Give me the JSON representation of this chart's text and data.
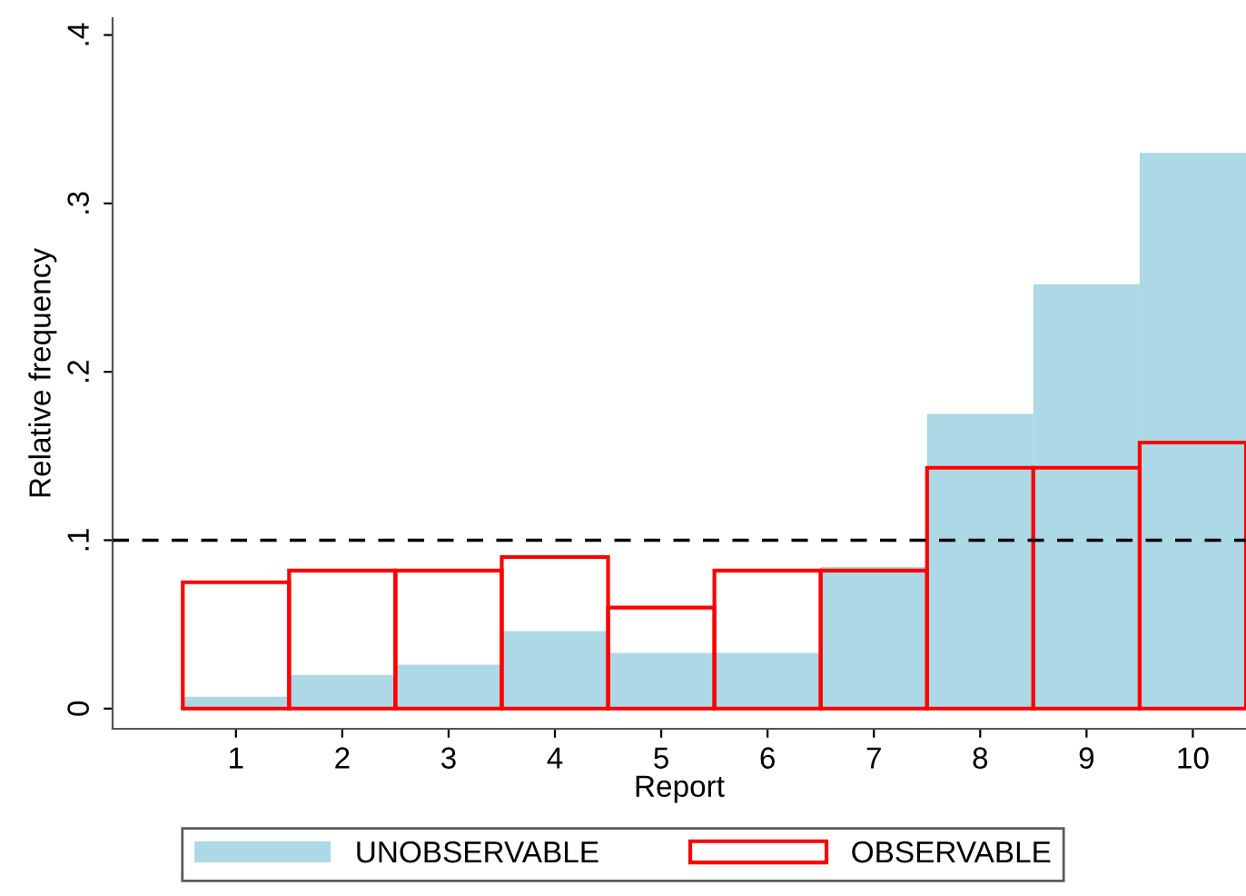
{
  "chart_data": {
    "type": "bar",
    "xlabel": "Report",
    "ylabel": "Relative frequency",
    "categories": [
      "1",
      "2",
      "3",
      "4",
      "5",
      "6",
      "7",
      "8",
      "9",
      "10"
    ],
    "series": [
      {
        "name": "UNOBSERVABLE",
        "color": "#add8e6",
        "values": [
          0.007,
          0.02,
          0.026,
          0.046,
          0.033,
          0.033,
          0.084,
          0.175,
          0.252,
          0.33
        ]
      },
      {
        "name": "OBSERVABLE",
        "color": "#ff0000",
        "values": [
          0.075,
          0.082,
          0.082,
          0.09,
          0.06,
          0.082,
          0.082,
          0.143,
          0.143,
          0.158
        ]
      }
    ],
    "ylim": [
      -0.012,
      0.41
    ],
    "yticks": [
      0,
      {
        "value": 0.1,
        "label": ".1"
      },
      {
        "value": 0.2,
        "label": ".2"
      },
      {
        "value": 0.3,
        "label": ".3"
      },
      {
        "value": 0.4,
        "label": ".4"
      }
    ],
    "ref_lines": [
      {
        "axis": "y",
        "value": 0.1,
        "color": "#000000",
        "line_style": "dashed"
      }
    ],
    "legend": "bottom",
    "grid": false
  }
}
